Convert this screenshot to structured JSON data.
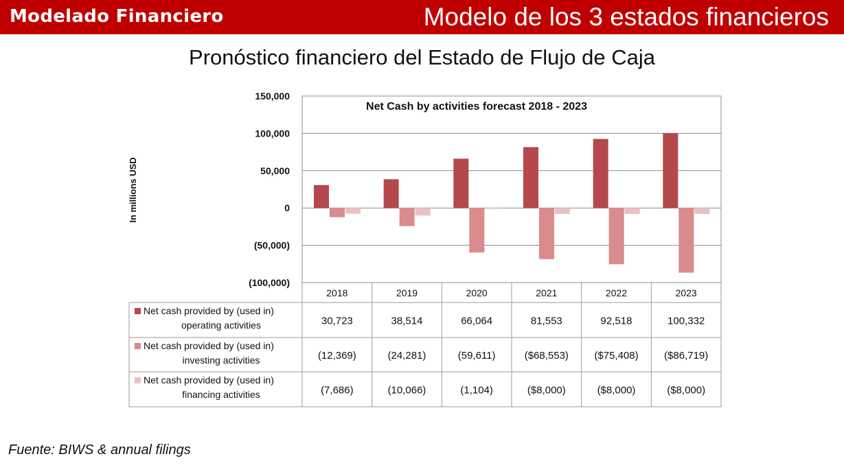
{
  "header": {
    "brand": "Modelado Financiero",
    "headline": "Modelo de los 3 estados financieros"
  },
  "subtitle": "Pronóstico financiero del Estado de Flujo de Caja",
  "source": "Fuente: BIWS & annual filings",
  "colors": {
    "header_bg": "#c00000",
    "operating": "#b5484a",
    "investing": "#d98b8d",
    "financing": "#ecc0c1"
  },
  "chart_data": {
    "type": "bar",
    "title": "Net Cash by activities forecast 2018 - 2023",
    "ylabel": "In millions USD",
    "ylim": [
      -100000,
      150000
    ],
    "yticks": [
      150000,
      100000,
      50000,
      0,
      -50000,
      -100000
    ],
    "ytick_labels": [
      "150,000",
      "100,000",
      "50,000",
      "0",
      "(50,000)",
      "(100,000)"
    ],
    "grid": true,
    "legend": "data-table",
    "categories": [
      "2018",
      "2019",
      "2020",
      "2021",
      "2022",
      "2023"
    ],
    "series": [
      {
        "name_lines": [
          "Net cash provided by (used in)",
          "operating activities"
        ],
        "values": [
          30723,
          38514,
          66064,
          81553,
          92518,
          100332
        ],
        "labels": [
          "30,723",
          "38,514",
          "66,064",
          "81,553",
          "92,518",
          "100,332"
        ]
      },
      {
        "name_lines": [
          "Net cash provided by (used in)",
          "investing activities"
        ],
        "values": [
          -12369,
          -24281,
          -59611,
          -68553,
          -75408,
          -86719
        ],
        "labels": [
          "(12,369)",
          "(24,281)",
          "(59,611)",
          "($68,553)",
          "($75,408)",
          "($86,719)"
        ]
      },
      {
        "name_lines": [
          "Net cash provided by (used in)",
          "financing activities"
        ],
        "values": [
          -7686,
          -10066,
          -1104,
          -8000,
          -8000,
          -8000
        ],
        "labels": [
          "(7,686)",
          "(10,066)",
          "(1,104)",
          "($8,000)",
          "($8,000)",
          "($8,000)"
        ]
      }
    ]
  }
}
